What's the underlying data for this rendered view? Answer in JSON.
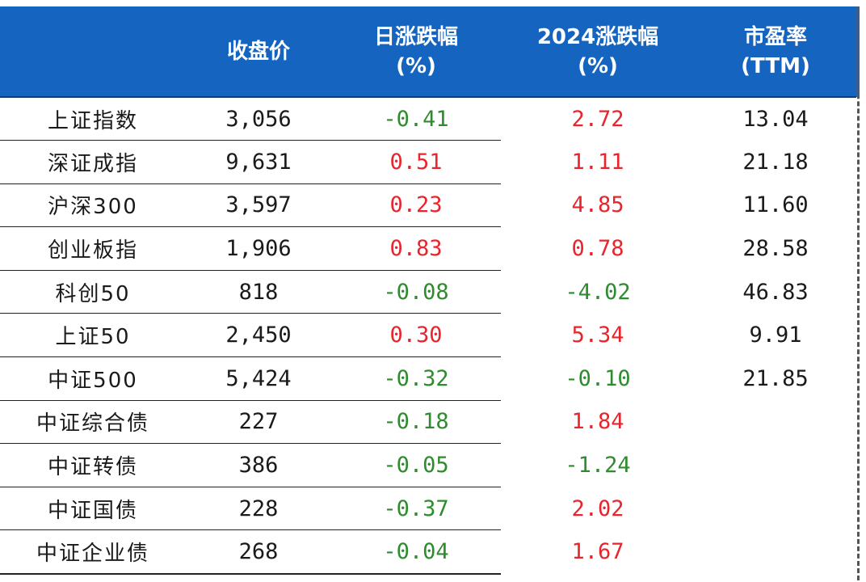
{
  "colors": {
    "header_bg": "#1565c0",
    "header_text": "#ffffff",
    "up": "#e8242c",
    "down": "#2e8b2e",
    "neutral": "#1a1a1a"
  },
  "chart_data": {
    "type": "table",
    "columns": [
      "",
      "收盘价",
      "日涨跌幅\n(%)",
      "2024涨跌幅\n(%)",
      "市盈率\n(TTM)"
    ],
    "header": {
      "close": [
        "收盘价"
      ],
      "daily": [
        "日涨跌幅",
        "(%)"
      ],
      "ytd": [
        "2024涨跌幅",
        "(%)"
      ],
      "pe": [
        "市盈率",
        "(TTM)"
      ]
    },
    "rows": [
      {
        "name": "上证指数",
        "close": "3,056",
        "daily": "-0.41",
        "ytd": "2.72",
        "pe": "13.04"
      },
      {
        "name": "深证成指",
        "close": "9,631",
        "daily": "0.51",
        "ytd": "1.11",
        "pe": "21.18"
      },
      {
        "name": "沪深300",
        "close": "3,597",
        "daily": "0.23",
        "ytd": "4.85",
        "pe": "11.60"
      },
      {
        "name": "创业板指",
        "close": "1,906",
        "daily": "0.83",
        "ytd": "0.78",
        "pe": "28.58"
      },
      {
        "name": "科创50",
        "close": "818",
        "daily": "-0.08",
        "ytd": "-4.02",
        "pe": "46.83"
      },
      {
        "name": "上证50",
        "close": "2,450",
        "daily": "0.30",
        "ytd": "5.34",
        "pe": "9.91"
      },
      {
        "name": "中证500",
        "close": "5,424",
        "daily": "-0.32",
        "ytd": "-0.10",
        "pe": "21.85"
      },
      {
        "name": "中证综合债",
        "close": "227",
        "daily": "-0.18",
        "ytd": "1.84",
        "pe": ""
      },
      {
        "name": "中证转债",
        "close": "386",
        "daily": "-0.05",
        "ytd": "-1.24",
        "pe": ""
      },
      {
        "name": "中证国债",
        "close": "228",
        "daily": "-0.37",
        "ytd": "2.02",
        "pe": ""
      },
      {
        "name": "中证企业债",
        "close": "268",
        "daily": "-0.04",
        "ytd": "1.67",
        "pe": ""
      }
    ]
  }
}
